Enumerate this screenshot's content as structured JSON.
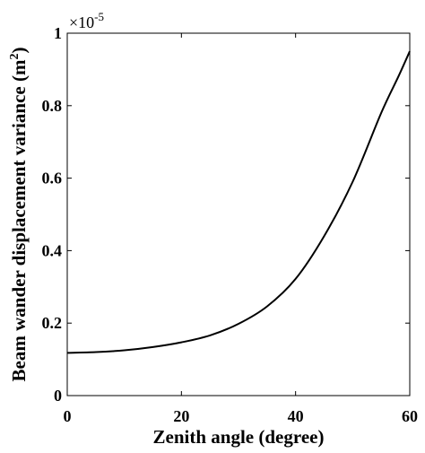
{
  "chart_data": {
    "type": "line",
    "title": "",
    "xlabel": "Zenith angle (degree)",
    "ylabel_main": "Beam wander displacement variance (m",
    "ylabel_sup": "2",
    "ylabel_close": ")",
    "y_multiplier": {
      "base": "×10",
      "exponent": "-5"
    },
    "xlim": [
      0,
      60
    ],
    "ylim": [
      0,
      1
    ],
    "x_ticks": [
      0,
      20,
      40,
      60
    ],
    "x_tick_labels": [
      "0",
      "20",
      "40",
      "60"
    ],
    "y_ticks": [
      0,
      0.2,
      0.4,
      0.6,
      0.8,
      1
    ],
    "y_tick_labels": [
      "0",
      "0.2",
      "0.4",
      "0.6",
      "0.8",
      "1"
    ],
    "grid": false,
    "series": [
      {
        "color": "#000000",
        "x": [
          0,
          5,
          10,
          15,
          20,
          25,
          30,
          35,
          40,
          45,
          50,
          55,
          58,
          60
        ],
        "y": [
          0.118,
          0.12,
          0.125,
          0.134,
          0.147,
          0.166,
          0.198,
          0.246,
          0.322,
          0.44,
          0.59,
          0.78,
          0.88,
          0.95
        ]
      }
    ]
  }
}
